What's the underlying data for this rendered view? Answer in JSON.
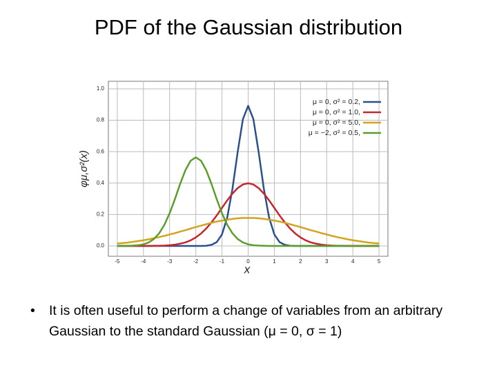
{
  "slide": {
    "title": "PDF of the Gaussian distribution",
    "bullet": "It is often useful to perform a change of variables from an arbitrary Gaussian to the standard Gaussian (μ = 0, σ = 1)"
  },
  "chart_data": {
    "type": "line",
    "x_label": "x",
    "y_label": "φμ,σ²(x)",
    "x": [
      -5,
      -4.8,
      -4.6,
      -4.4,
      -4.2,
      -4,
      -3.8,
      -3.6,
      -3.4,
      -3.2,
      -3,
      -2.8,
      -2.6,
      -2.4,
      -2.2,
      -2,
      -1.8,
      -1.6,
      -1.4,
      -1.2,
      -1,
      -0.8,
      -0.6,
      -0.4,
      -0.2,
      0,
      0.2,
      0.4,
      0.6,
      0.8,
      1,
      1.2,
      1.4,
      1.6,
      1.8,
      2,
      2.2,
      2.4,
      2.6,
      2.8,
      3,
      3.2,
      3.4,
      3.6,
      3.8,
      4,
      4.2,
      4.4,
      4.6,
      4.8,
      5
    ],
    "series": [
      {
        "name": "μ = 0,  σ² = 0.2,",
        "color": "#2b4f8c",
        "values": [
          0,
          0,
          0,
          0,
          0,
          0,
          0,
          0,
          0,
          0,
          0,
          0,
          0,
          0,
          0,
          0,
          0,
          0.001,
          0.007,
          0.024,
          0.073,
          0.18,
          0.363,
          0.598,
          0.807,
          0.892,
          0.807,
          0.598,
          0.363,
          0.18,
          0.073,
          0.024,
          0.007,
          0.001,
          0,
          0,
          0,
          0,
          0,
          0,
          0,
          0,
          0,
          0,
          0,
          0,
          0,
          0,
          0,
          0,
          0
        ]
      },
      {
        "name": "μ = 0,  σ² = 1.0,",
        "color": "#c4262e",
        "values": [
          0,
          0,
          0,
          0,
          0,
          0,
          0,
          0.001,
          0.001,
          0.002,
          0.004,
          0.008,
          0.014,
          0.022,
          0.035,
          0.054,
          0.079,
          0.111,
          0.15,
          0.194,
          0.242,
          0.29,
          0.333,
          0.368,
          0.391,
          0.399,
          0.391,
          0.368,
          0.333,
          0.29,
          0.242,
          0.194,
          0.15,
          0.111,
          0.079,
          0.054,
          0.035,
          0.022,
          0.014,
          0.008,
          0.004,
          0.002,
          0.001,
          0.001,
          0,
          0,
          0,
          0,
          0,
          0,
          0
        ]
      },
      {
        "name": "μ = 0,  σ² = 5.0,",
        "color": "#d4a21c",
        "values": [
          0.015,
          0.018,
          0.021,
          0.026,
          0.031,
          0.036,
          0.042,
          0.049,
          0.056,
          0.064,
          0.073,
          0.081,
          0.091,
          0.1,
          0.11,
          0.12,
          0.129,
          0.138,
          0.147,
          0.155,
          0.161,
          0.167,
          0.172,
          0.176,
          0.178,
          0.178,
          0.178,
          0.176,
          0.172,
          0.167,
          0.161,
          0.155,
          0.147,
          0.138,
          0.129,
          0.12,
          0.11,
          0.1,
          0.091,
          0.081,
          0.073,
          0.064,
          0.056,
          0.049,
          0.042,
          0.036,
          0.031,
          0.026,
          0.021,
          0.018,
          0.015
        ]
      },
      {
        "name": "μ = −2,  σ² = 0.5,",
        "color": "#5a9e2a",
        "values": [
          0,
          0,
          0.001,
          0.002,
          0.004,
          0.01,
          0.022,
          0.044,
          0.08,
          0.134,
          0.208,
          0.297,
          0.394,
          0.481,
          0.542,
          0.564,
          0.542,
          0.481,
          0.394,
          0.297,
          0.208,
          0.134,
          0.08,
          0.044,
          0.022,
          0.01,
          0.004,
          0.002,
          0.001,
          0,
          0,
          0,
          0,
          0,
          0,
          0,
          0,
          0,
          0,
          0,
          0,
          0,
          0,
          0,
          0,
          0,
          0,
          0,
          0,
          0,
          0
        ]
      }
    ],
    "xlim": [
      -5.34,
      5.34
    ],
    "ylim": [
      -0.066,
      1.048
    ],
    "xticks": [
      -5,
      -4,
      -3,
      -2,
      -1,
      0,
      1,
      2,
      3,
      4,
      5
    ],
    "yticks": [
      {
        "value": 0,
        "label": "0.0"
      },
      0.2,
      0.4,
      0.6,
      0.8,
      {
        "value": 1,
        "label": "1.0"
      }
    ],
    "grid": true,
    "legend": "upper right"
  }
}
